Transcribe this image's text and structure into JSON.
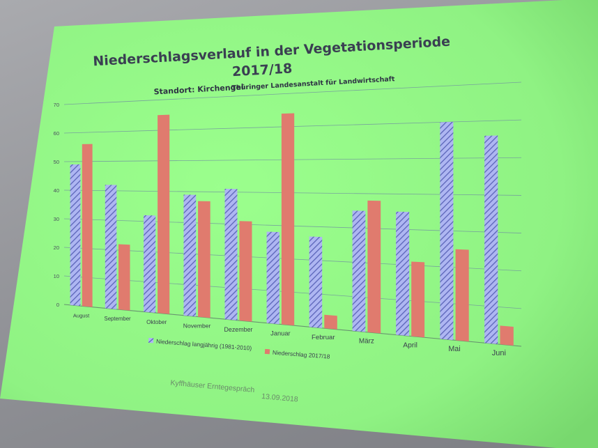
{
  "slide": {
    "title_line1": "Niederschlagsverlauf in der Vegetationsperiode",
    "title_line2": "2017/18",
    "subtitle_location": "Standort: Kirchengel",
    "subtitle_institute": "Thüringer Landesanstalt für Landwirtschaft",
    "footer_event": "Kyffhäuser Erntegespräch",
    "footer_date": "13.09.2018",
    "background_color": "#8ff283"
  },
  "chart_data": {
    "type": "bar",
    "categories": [
      "August",
      "September",
      "Oktober",
      "November",
      "Dezember",
      "Januar",
      "Februar",
      "März",
      "April",
      "Mai",
      "Juni"
    ],
    "series": [
      {
        "name": "Niederschlag langjährig (1981-2010)",
        "color": "#8a92d8",
        "pattern": "diagonal-hatch",
        "values": [
          49,
          42,
          32,
          39,
          41,
          28,
          27,
          35,
          35,
          60,
          56
        ]
      },
      {
        "name": "Niederschlag 2017/18",
        "color": "#e07b6e",
        "values": [
          56,
          22,
          65,
          37,
          31,
          64,
          4,
          38,
          21,
          25,
          5
        ]
      }
    ],
    "yticks": [
      0,
      10,
      20,
      30,
      40,
      50,
      60,
      70
    ],
    "ylim": [
      0,
      70
    ],
    "grid": true,
    "legend_position": "bottom-left"
  }
}
